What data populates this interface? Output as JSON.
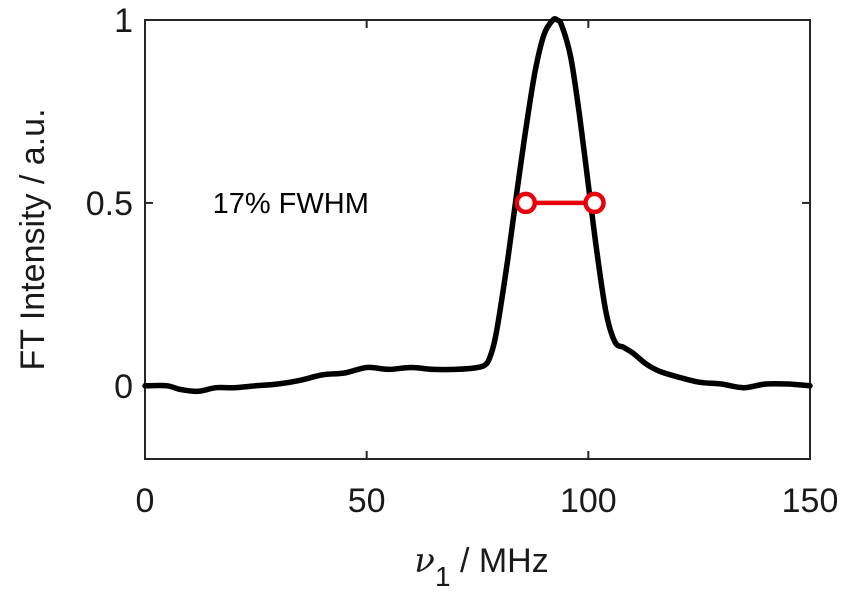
{
  "chart_data": {
    "type": "line",
    "xlabel_symbol": "ν",
    "xlabel_subscript": "1",
    "xlabel_unit": " / MHz",
    "ylabel": "FT Intensity / a.u.",
    "xlim": [
      0,
      150
    ],
    "ylim": [
      -0.2,
      1.0
    ],
    "xticks": [
      0,
      50,
      100,
      150
    ],
    "xtick_labels": [
      "0",
      "50",
      "100",
      "150"
    ],
    "yticks": [
      0,
      0.5,
      1
    ],
    "ytick_labels": [
      "0",
      "0.5",
      "1"
    ],
    "grid": false,
    "box": true,
    "series": [
      {
        "color": "#000000",
        "x": [
          0,
          5,
          8,
          12,
          16,
          20,
          25,
          30,
          35,
          40,
          45,
          50,
          55,
          60,
          65,
          70,
          75,
          77,
          78,
          79,
          80,
          82,
          84,
          86,
          88,
          90,
          92,
          93,
          94,
          96,
          98,
          100,
          102,
          104,
          106,
          108,
          110,
          113,
          116,
          120,
          125,
          130,
          135,
          140,
          145,
          150
        ],
        "y": [
          0.0,
          0.0,
          -0.01,
          -0.015,
          -0.005,
          -0.005,
          0.0,
          0.005,
          0.015,
          0.03,
          0.035,
          0.05,
          0.045,
          0.05,
          0.045,
          0.045,
          0.05,
          0.06,
          0.085,
          0.13,
          0.2,
          0.36,
          0.54,
          0.71,
          0.86,
          0.96,
          1.0,
          1.0,
          0.985,
          0.9,
          0.74,
          0.55,
          0.36,
          0.2,
          0.12,
          0.105,
          0.09,
          0.06,
          0.04,
          0.025,
          0.01,
          0.005,
          -0.005,
          0.005,
          0.005,
          0.0
        ]
      }
    ],
    "fwhm": {
      "color": "#e8000b",
      "x": [
        85.9,
        101.4
      ],
      "y": 0.5
    },
    "annotations": [
      {
        "text": "17% FWHM",
        "x": 50.5,
        "y": 0.5
      }
    ]
  }
}
